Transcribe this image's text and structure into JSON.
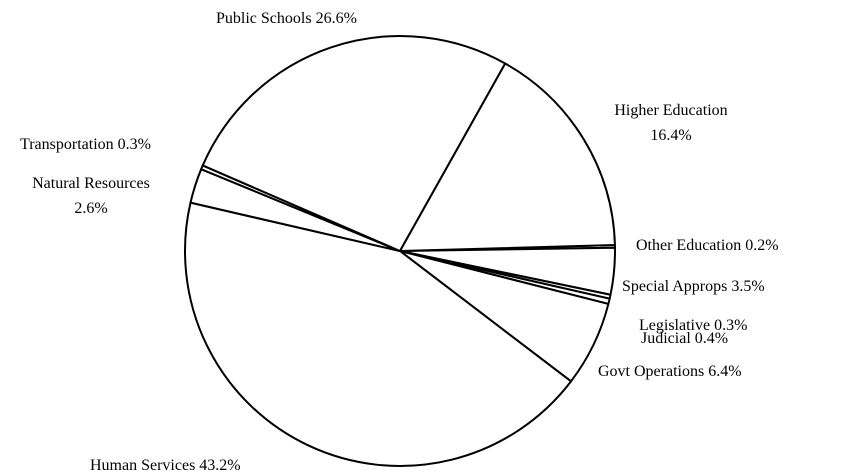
{
  "chart_data": {
    "type": "pie",
    "title": "",
    "start_angle_deg": -1.6,
    "direction": "clockwise",
    "slices": [
      {
        "label": "Other Education",
        "value": 0.2,
        "text": [
          "Other Education 0.2%"
        ]
      },
      {
        "label": "Special Approps",
        "value": 3.5,
        "text": [
          "Special Approps 3.5%"
        ]
      },
      {
        "label": "Legislative",
        "value": 0.3,
        "text": [
          "Legislative 0.3%"
        ]
      },
      {
        "label": "Judicial",
        "value": 0.4,
        "text": [
          "Judicial 0.4%"
        ]
      },
      {
        "label": "Govt Operations",
        "value": 6.4,
        "text": [
          "Govt Operations 6.4%"
        ]
      },
      {
        "label": "Human Services",
        "value": 43.2,
        "text": [
          "Human Services 43.2%"
        ]
      },
      {
        "label": "Natural Resources",
        "value": 2.6,
        "text": [
          "Natural Resources",
          "2.6%"
        ]
      },
      {
        "label": "Transportation",
        "value": 0.3,
        "text": [
          "Transportation 0.3%"
        ]
      },
      {
        "label": "Public Schools",
        "value": 26.6,
        "text": [
          "Public Schools 26.6%"
        ]
      },
      {
        "label": "Higher Education",
        "value": 16.4,
        "text": [
          "Higher Education",
          "16.4%"
        ]
      }
    ],
    "colors": {
      "fill": "#ffffff",
      "stroke": "#000000"
    },
    "legend": "none"
  }
}
